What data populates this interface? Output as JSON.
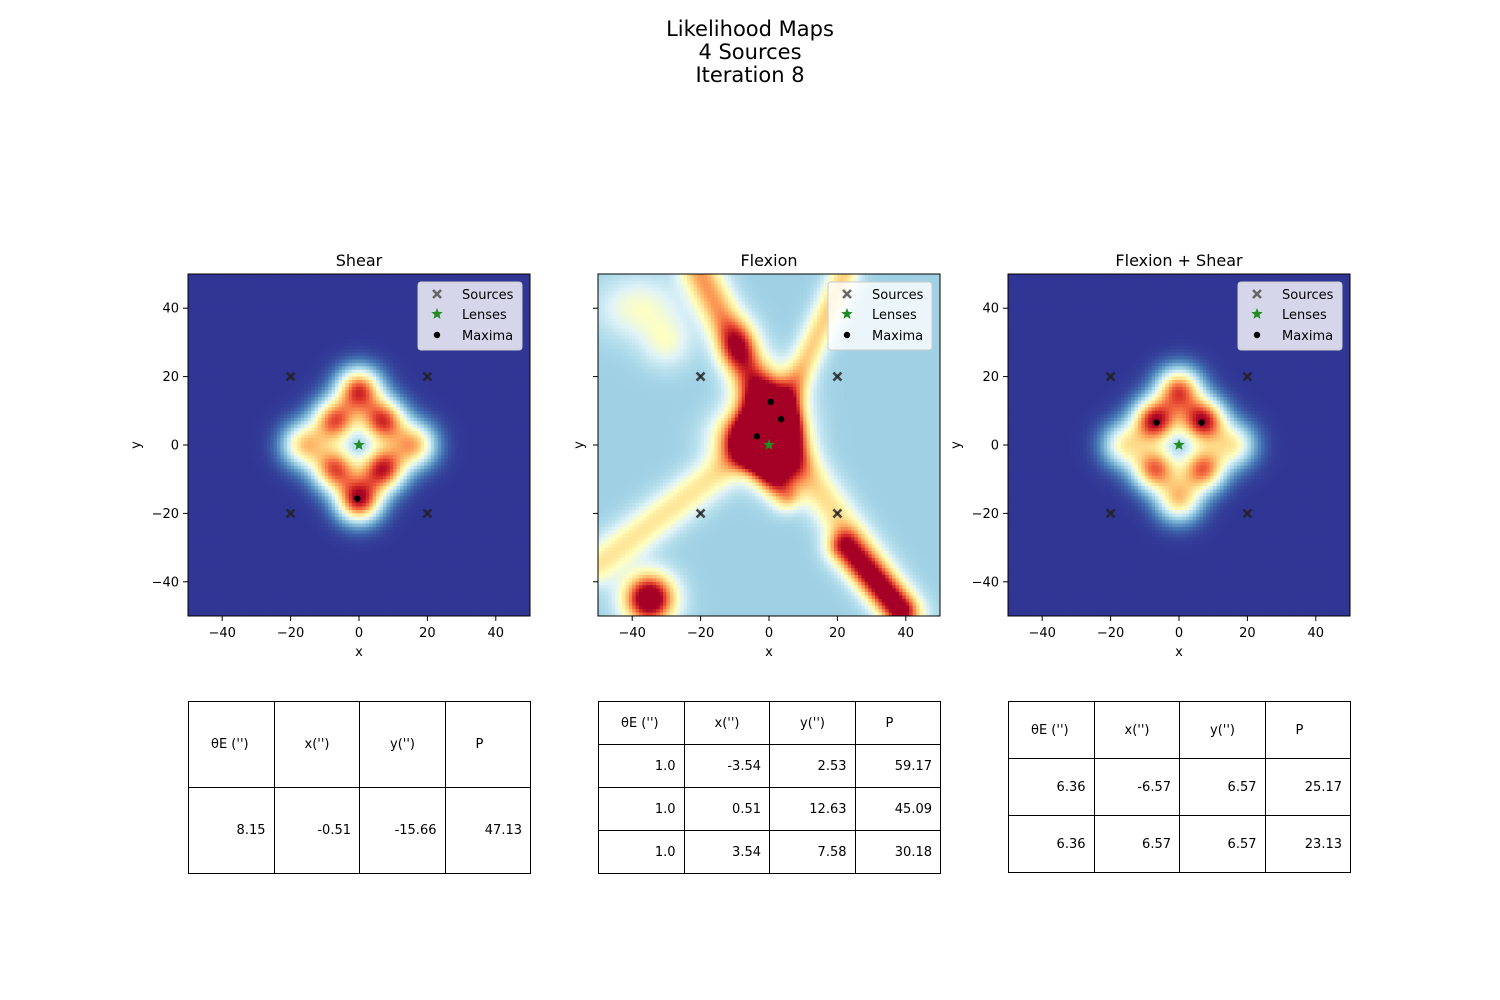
{
  "figure": {
    "title_lines": [
      "Likelihood Maps",
      "4 Sources",
      "Iteration 8"
    ]
  },
  "colors": {
    "background_low": "#313695",
    "mid_low": "#74add1",
    "mid": "#ffffbf",
    "mid_high": "#f46d43",
    "high": "#a50026",
    "sources_marker": "#555555",
    "lenses_marker": "#228b22",
    "maxima_marker": "#000000"
  },
  "chart_data": [
    {
      "type": "heatmap",
      "title": "Shear",
      "xlabel": "x",
      "ylabel": "y",
      "xlim": [
        -50,
        50
      ],
      "ylim": [
        -50,
        50
      ],
      "xticks": [
        -40,
        -20,
        0,
        20,
        40
      ],
      "yticks": [
        -40,
        -20,
        0,
        20,
        40
      ],
      "show_ytick_labels": true,
      "grid": false,
      "legend": {
        "placement": "top-right",
        "entries": [
          "Sources",
          "Lenses",
          "Maxima"
        ]
      },
      "sources": [
        [
          -20,
          20
        ],
        [
          20,
          20
        ],
        [
          -20,
          -20
        ],
        [
          20,
          -20
        ]
      ],
      "lenses": [
        [
          0,
          0
        ]
      ],
      "maxima": [
        [
          -0.51,
          -15.66
        ]
      ],
      "blobs": [
        {
          "x": 0,
          "y": 16,
          "amp": 0.85
        },
        {
          "x": -7,
          "y": 7,
          "amp": 0.8
        },
        {
          "x": 7,
          "y": 7,
          "amp": 0.85
        },
        {
          "x": -16,
          "y": 0,
          "amp": 0.6
        },
        {
          "x": 16,
          "y": 0,
          "amp": 0.65
        },
        {
          "x": -7,
          "y": -7,
          "amp": 0.8
        },
        {
          "x": 7,
          "y": -7,
          "amp": 0.9
        },
        {
          "x": 0,
          "y": -16,
          "amp": 0.95
        }
      ],
      "table": {
        "headers": [
          "θE ('')",
          "x('')",
          "y('')",
          "P"
        ],
        "rows": [
          [
            "8.15",
            "-0.51",
            "-15.66",
            "47.13"
          ]
        ]
      }
    },
    {
      "type": "heatmap",
      "title": "Flexion",
      "xlabel": "x",
      "ylabel": "y",
      "xlim": [
        -50,
        50
      ],
      "ylim": [
        -50,
        50
      ],
      "xticks": [
        -40,
        -20,
        0,
        20,
        40
      ],
      "yticks": [
        -40,
        -20,
        0,
        20,
        40
      ],
      "show_ytick_labels": false,
      "grid": false,
      "legend": {
        "placement": "top-right",
        "entries": [
          "Sources",
          "Lenses",
          "Maxima"
        ]
      },
      "sources": [
        [
          -20,
          20
        ],
        [
          20,
          20
        ],
        [
          -20,
          -20
        ],
        [
          20,
          -20
        ]
      ],
      "lenses": [
        [
          0,
          0
        ]
      ],
      "maxima": [
        [
          -3.54,
          2.53
        ],
        [
          0.51,
          12.63
        ],
        [
          3.54,
          7.58
        ]
      ],
      "background": 0.28,
      "blobs": [
        {
          "x": 0,
          "y": 8,
          "amp": 0.9,
          "sx": 6,
          "sy": 8
        },
        {
          "x": -4,
          "y": 2,
          "amp": 0.85,
          "sx": 7,
          "sy": 5
        },
        {
          "x": 3,
          "y": -6,
          "amp": 0.55,
          "sx": 5,
          "sy": 5
        },
        {
          "x": -9,
          "y": 29,
          "amp": 0.35,
          "sx": 4,
          "sy": 5
        },
        {
          "x": -35,
          "y": -45,
          "amp": 0.9,
          "sx": 5,
          "sy": 5
        },
        {
          "x": -38,
          "y": 40,
          "amp": 0.2,
          "sx": 8,
          "sy": 6
        },
        {
          "x": -30,
          "y": 30,
          "amp": 0.18,
          "sx": 5,
          "sy": 5
        }
      ],
      "ridges": [
        {
          "x1": 2,
          "y1": 5,
          "x2": -20,
          "y2": 50,
          "amp": 0.45,
          "w": 4
        },
        {
          "x1": 2,
          "y1": 5,
          "x2": 22,
          "y2": 50,
          "amp": 0.35,
          "w": 3
        },
        {
          "x1": 2,
          "y1": 5,
          "x2": 40,
          "y2": -50,
          "amp": 0.32,
          "w": 4
        },
        {
          "x1": 2,
          "y1": 5,
          "x2": -50,
          "y2": -35,
          "amp": 0.3,
          "w": 4
        },
        {
          "x1": 22,
          "y1": -30,
          "x2": 38,
          "y2": -48,
          "amp": 0.55,
          "w": 3.5
        },
        {
          "x1": -5,
          "y1": -3,
          "x2": 5,
          "y2": -15,
          "amp": 0.35,
          "w": 3
        }
      ],
      "table": {
        "headers": [
          "θE ('')",
          "x('')",
          "y('')",
          "P"
        ],
        "rows": [
          [
            "1.0",
            "-3.54",
            "2.53",
            "59.17"
          ],
          [
            "1.0",
            "0.51",
            "12.63",
            "45.09"
          ],
          [
            "1.0",
            "3.54",
            "7.58",
            "30.18"
          ]
        ]
      }
    },
    {
      "type": "heatmap",
      "title": "Flexion + Shear",
      "xlabel": "x",
      "ylabel": "y",
      "xlim": [
        -50,
        50
      ],
      "ylim": [
        -50,
        50
      ],
      "xticks": [
        -40,
        -20,
        0,
        20,
        40
      ],
      "yticks": [
        -40,
        -20,
        0,
        20,
        40
      ],
      "show_ytick_labels": true,
      "grid": false,
      "legend": {
        "placement": "top-right",
        "entries": [
          "Sources",
          "Lenses",
          "Maxima"
        ]
      },
      "sources": [
        [
          -20,
          20
        ],
        [
          20,
          20
        ],
        [
          -20,
          -20
        ],
        [
          20,
          -20
        ]
      ],
      "lenses": [
        [
          0,
          0
        ]
      ],
      "maxima": [
        [
          -6.57,
          6.57
        ],
        [
          6.57,
          6.57
        ]
      ],
      "blobs": [
        {
          "x": 0,
          "y": 16,
          "amp": 0.8
        },
        {
          "x": -7,
          "y": 7,
          "amp": 0.95
        },
        {
          "x": 7,
          "y": 7,
          "amp": 0.95
        },
        {
          "x": -16,
          "y": 0,
          "amp": 0.5
        },
        {
          "x": 16,
          "y": 0,
          "amp": 0.5
        },
        {
          "x": -7,
          "y": -7,
          "amp": 0.78
        },
        {
          "x": 7,
          "y": -7,
          "amp": 0.78
        },
        {
          "x": 0,
          "y": -16,
          "amp": 0.6
        }
      ],
      "table": {
        "headers": [
          "θE ('')",
          "x('')",
          "y('')",
          "P"
        ],
        "rows": [
          [
            "6.36",
            "-6.57",
            "6.57",
            "25.17"
          ],
          [
            "6.36",
            "6.57",
            "6.57",
            "23.13"
          ]
        ]
      }
    }
  ]
}
